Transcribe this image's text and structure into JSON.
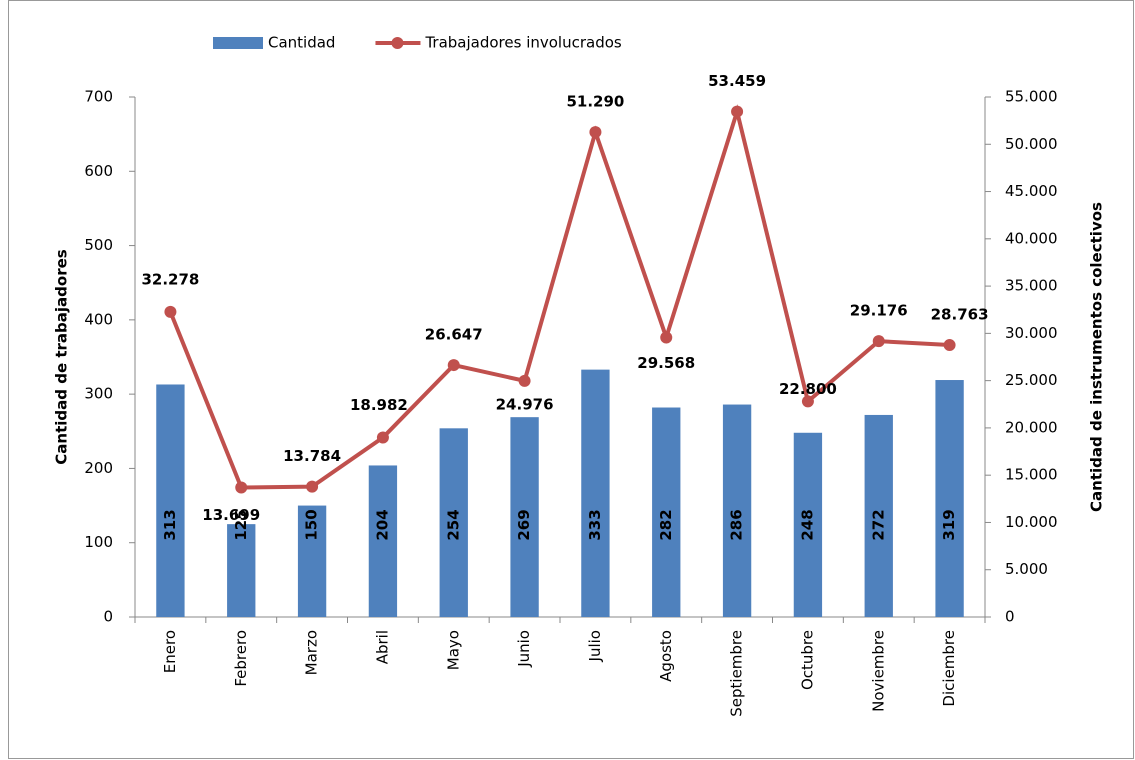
{
  "chart_data": {
    "type": "bar_line",
    "categories": [
      "Enero",
      "Febrero",
      "Marzo",
      "Abril",
      "Mayo",
      "Junio",
      "Julio",
      "Agosto",
      "Septiembre",
      "Octubre",
      "Noviembre",
      "Diciembre"
    ],
    "series": [
      {
        "name": "Cantidad",
        "color": "#4f81bd",
        "type": "bar",
        "values": [
          313,
          125,
          150,
          204,
          254,
          269,
          333,
          282,
          286,
          248,
          272,
          319
        ]
      },
      {
        "name": "Trabajadores involucrados",
        "color": "#c0504d",
        "type": "line",
        "axis": "y2",
        "values": [
          32278,
          13699,
          13784,
          18982,
          26647,
          24976,
          51290,
          29568,
          53459,
          22800,
          29176,
          28763
        ],
        "value_labels": [
          "32.278",
          "13.699",
          "13.784",
          "18.982",
          "26.647",
          "24.976",
          "51.290",
          "29.568",
          "53.459",
          "22.800",
          "29.176",
          "28.763"
        ]
      }
    ],
    "ylabel": "Cantidad de trabajadores",
    "y2label": "Cantidad de instrumentos colectivos",
    "ylim": [
      0,
      700
    ],
    "yticks": [
      0,
      100,
      200,
      300,
      400,
      500,
      600,
      700
    ],
    "y2lim": [
      0,
      55000
    ],
    "y2ticks": [
      {
        "value": 0,
        "label": "0"
      },
      {
        "value": 5000,
        "label": "5.000"
      },
      {
        "value": 10000,
        "label": "10.000"
      },
      {
        "value": 15000,
        "label": "15.000"
      },
      {
        "value": 20000,
        "label": "20.000"
      },
      {
        "value": 25000,
        "label": "25.000"
      },
      {
        "value": 30000,
        "label": "30.000"
      },
      {
        "value": 35000,
        "label": "35.000"
      },
      {
        "value": 40000,
        "label": "40.000"
      },
      {
        "value": 45000,
        "label": "45.000"
      },
      {
        "value": 50000,
        "label": "50.000"
      },
      {
        "value": 55000,
        "label": "55.000"
      }
    ],
    "legend": "top"
  }
}
